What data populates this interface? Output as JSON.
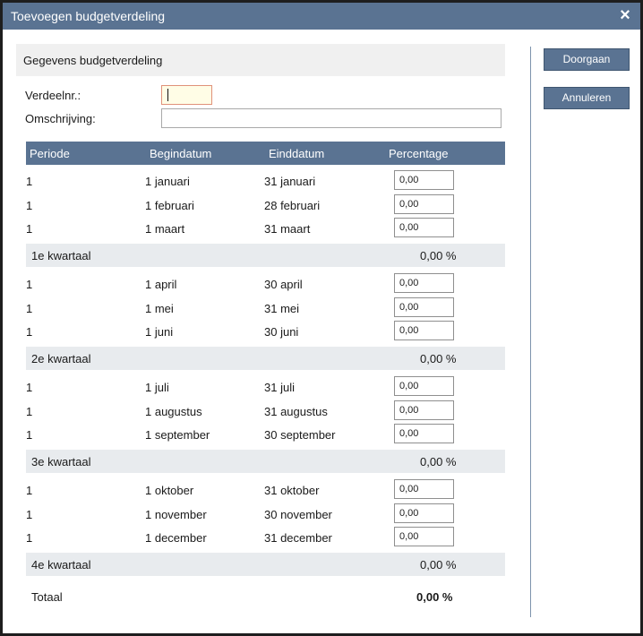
{
  "window": {
    "title": "Toevoegen budgetverdeling",
    "close_icon": "×"
  },
  "section": {
    "title": "Gegevens budgetverdeling"
  },
  "form": {
    "verdeelnr_label": "Verdeelnr.:",
    "verdeelnr_value": "",
    "omschrijving_label": "Omschrijving:",
    "omschrijving_value": ""
  },
  "table": {
    "headers": {
      "periode": "Periode",
      "begindatum": "Begindatum",
      "einddatum": "Einddatum",
      "percentage": "Percentage"
    },
    "months": [
      {
        "periode": "1",
        "begin": "1 januari",
        "eind": "31 januari",
        "pct": "0,00"
      },
      {
        "periode": "1",
        "begin": "1 februari",
        "eind": "28 februari",
        "pct": "0,00"
      },
      {
        "periode": "1",
        "begin": "1 maart",
        "eind": "31 maart",
        "pct": "0,00"
      },
      {
        "periode": "1",
        "begin": "1 april",
        "eind": "30 april",
        "pct": "0,00"
      },
      {
        "periode": "1",
        "begin": "1 mei",
        "eind": "31 mei",
        "pct": "0,00"
      },
      {
        "periode": "1",
        "begin": "1 juni",
        "eind": "30 juni",
        "pct": "0,00"
      },
      {
        "periode": "1",
        "begin": "1 juli",
        "eind": "31 juli",
        "pct": "0,00"
      },
      {
        "periode": "1",
        "begin": "1 augustus",
        "eind": "31 augustus",
        "pct": "0,00"
      },
      {
        "periode": "1",
        "begin": "1 september",
        "eind": "30 september",
        "pct": "0,00"
      },
      {
        "periode": "1",
        "begin": "1 oktober",
        "eind": "31 oktober",
        "pct": "0,00"
      },
      {
        "periode": "1",
        "begin": "1 november",
        "eind": "30 november",
        "pct": "0,00"
      },
      {
        "periode": "1",
        "begin": "1 december",
        "eind": "31 december",
        "pct": "0,00"
      }
    ],
    "quarters": [
      {
        "label": "1e kwartaal",
        "value": "0,00 %"
      },
      {
        "label": "2e kwartaal",
        "value": "0,00 %"
      },
      {
        "label": "3e kwartaal",
        "value": "0,00 %"
      },
      {
        "label": "4e kwartaal",
        "value": "0,00 %"
      }
    ],
    "total": {
      "label": "Totaal",
      "value": "0,00 %"
    }
  },
  "buttons": {
    "continue": "Doorgaan",
    "cancel": "Annuleren"
  },
  "colors": {
    "accent": "#5a7392",
    "quarter_bg": "#e8ebee",
    "focus_border": "#e0927a",
    "focus_bg": "#fffde6"
  }
}
